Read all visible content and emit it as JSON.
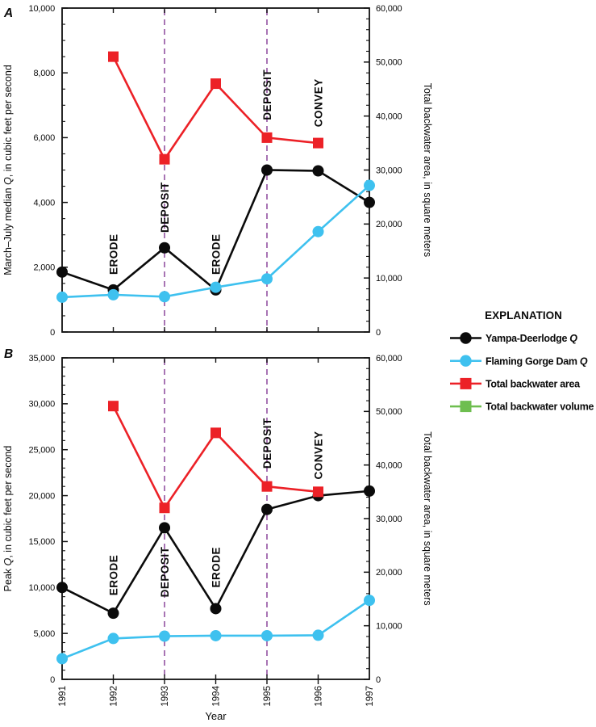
{
  "figure": {
    "x_axis_title": "Year",
    "x_categories": [
      "1991",
      "1992",
      "1993",
      "1994",
      "1995",
      "1996",
      "1997"
    ]
  },
  "colors": {
    "black": "#0b0b0b",
    "cyan": "#3ec1ef",
    "red": "#ec2127",
    "green": "#6ebe4f",
    "purple_dashed": "#a874b4",
    "frame": "#111111"
  },
  "legend": {
    "title": "EXPLANATION",
    "items": [
      {
        "label": "Yampa-Deerlodge Q",
        "marker": "circle",
        "color_key": "black"
      },
      {
        "label": "Flaming Gorge Dam Q",
        "marker": "circle",
        "color_key": "cyan"
      },
      {
        "label": "Total backwater area",
        "marker": "square",
        "color_key": "red"
      },
      {
        "label": "Total backwater volume",
        "marker": "square",
        "color_key": "green"
      }
    ]
  },
  "chart_data": [
    {
      "type": "line",
      "panel_label": "A",
      "x": [
        1991,
        1992,
        1993,
        1994,
        1995,
        1996,
        1997
      ],
      "left_axis": {
        "title": "March–July median Q, in cubic feet per second",
        "min": 0,
        "max": 10000,
        "major": 2000,
        "minor": 500
      },
      "right_axis": {
        "title": "Total backwater area, in square meters",
        "min": 0,
        "max": 60000,
        "major": 10000,
        "minor": 2000
      },
      "vlines": {
        "style": "dashed",
        "color_key": "purple_dashed",
        "x": [
          1993,
          1995
        ]
      },
      "series": [
        {
          "name": "Yampa-Deerlodge Q",
          "axis": "left",
          "color_key": "black",
          "marker": "circle",
          "values": [
            1850,
            1300,
            2600,
            1300,
            5000,
            4975,
            4000
          ]
        },
        {
          "name": "Flaming Gorge Dam Q",
          "axis": "left",
          "color_key": "cyan",
          "marker": "circle",
          "values": [
            1075,
            1150,
            1090,
            1380,
            1640,
            3100,
            4525
          ]
        },
        {
          "name": "Total backwater area",
          "axis": "right",
          "color_key": "red",
          "marker": "square",
          "values": [
            null,
            51000,
            32000,
            46000,
            36000,
            35000,
            null
          ]
        }
      ],
      "annotations": [
        {
          "text": "ERODE",
          "year": 1992,
          "y_left": 2400
        },
        {
          "text": "DEPOSIT",
          "year": 1993,
          "y_left": 3850
        },
        {
          "text": "ERODE",
          "year": 1994,
          "y_left": 2400
        },
        {
          "text": "DEPOSIT",
          "year": 1995,
          "y_left": 7325
        },
        {
          "text": "CONVEY",
          "year": 1996,
          "y_left": 7075
        }
      ]
    },
    {
      "type": "line",
      "panel_label": "B",
      "x": [
        1991,
        1992,
        1993,
        1994,
        1995,
        1996,
        1997
      ],
      "left_axis": {
        "title": "Peak Q, in cubic feet per second",
        "min": 0,
        "max": 35000,
        "major": 5000,
        "minor": 1000
      },
      "right_axis": {
        "title": "Total backwater area, in square meters",
        "min": 0,
        "max": 60000,
        "major": 10000,
        "minor": 2000
      },
      "vlines": {
        "style": "dashed",
        "color_key": "purple_dashed",
        "x": [
          1993,
          1995
        ]
      },
      "series": [
        {
          "name": "Yampa-Deerlodge Q",
          "axis": "left",
          "color_key": "black",
          "marker": "circle",
          "values": [
            10000,
            7200,
            16500,
            7700,
            18500,
            20000,
            20500
          ]
        },
        {
          "name": "Flaming Gorge Dam Q",
          "axis": "left",
          "color_key": "cyan",
          "marker": "circle",
          "values": [
            2250,
            4450,
            4700,
            4750,
            4750,
            4800,
            8600
          ]
        },
        {
          "name": "Total backwater area",
          "axis": "right",
          "color_key": "red",
          "marker": "square",
          "values": [
            null,
            51000,
            32000,
            46000,
            36000,
            35000,
            null
          ]
        }
      ],
      "annotations": [
        {
          "text": "ERODE",
          "year": 1992,
          "y_left": 11350
        },
        {
          "text": "DEPOSIT",
          "year": 1993,
          "y_left": 11700
        },
        {
          "text": "ERODE",
          "year": 1994,
          "y_left": 12200
        },
        {
          "text": "DEPOSIT",
          "year": 1995,
          "y_left": 25700
        },
        {
          "text": "CONVEY",
          "year": 1996,
          "y_left": 24400
        }
      ]
    }
  ]
}
